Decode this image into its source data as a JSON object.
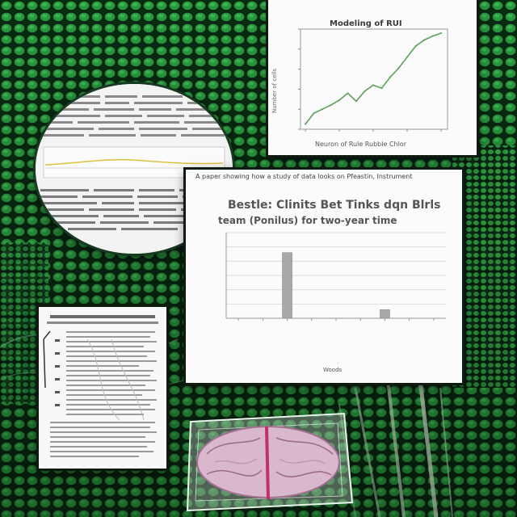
{
  "scene": {
    "background_color": "#0e4a1e",
    "accent_green": "#2fbf4a",
    "cell_edge_color": "#0a2a12"
  },
  "line_chart_card": {
    "title": "Modeling of RUI",
    "xlabel": "Neuron of Rule Rubble Chlor",
    "ylabel": "Number of cells"
  },
  "bar_chart_card": {
    "title_line_1": "A paper showing how a study of data looks on Pfeastin, Instrument",
    "title_line_2": "Bestle: Clinits Bet Tinks dqn Blrls",
    "title_line_3": "team (Ponilus) for two-year time",
    "xlabel": "Woods"
  },
  "icons": {
    "circle_document": "magnified-document-icon",
    "paper_document": "paper-report-icon",
    "brain_specimen": "brain-specimen-icon"
  },
  "chart_data": [
    {
      "type": "line",
      "title": "Modeling of RUI",
      "xlabel": "Neuron of Rule Rubble Chlor",
      "ylabel": "Number of cells",
      "x": [
        0,
        1,
        2,
        3,
        4,
        5,
        6,
        7,
        8,
        9,
        10,
        11,
        12,
        13,
        14,
        15,
        16
      ],
      "series": [
        {
          "values": [
            0.5,
            1.6,
            2.0,
            2.4,
            2.9,
            3.6,
            2.8,
            3.8,
            4.4,
            4.1,
            5.2,
            6.1,
            7.2,
            8.3,
            8.9,
            9.3,
            9.6
          ]
        }
      ],
      "ylim": [
        0,
        10
      ],
      "grid": false,
      "line_color": "#5aa05a"
    },
    {
      "type": "bar",
      "title": "Bestle: Clinits Bet Tinks dqn Blrls",
      "xlabel": "Woods",
      "categories": [
        "",
        "",
        "",
        "",
        "",
        "",
        "",
        "",
        ""
      ],
      "values": [
        0,
        0,
        92,
        0,
        0,
        0,
        12,
        0,
        0
      ],
      "ylim": [
        0,
        120
      ],
      "yticks": [
        0,
        20,
        40,
        60,
        80,
        100,
        120
      ],
      "grid": true,
      "bar_color": "#a9a9a9"
    }
  ]
}
